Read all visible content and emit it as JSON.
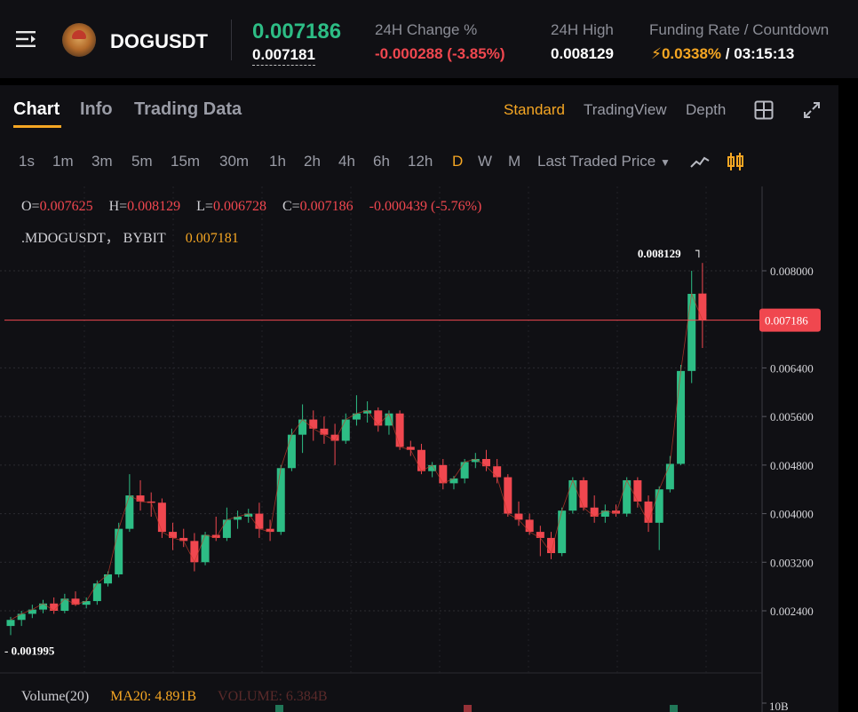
{
  "header": {
    "symbol": "DOGUSDT",
    "last_price": "0.007186",
    "mark_price": "0.007181",
    "change_label": "24H Change %",
    "change_value": "-0.000288 (-3.85%)",
    "high_label": "24H High",
    "high_value": "0.008129",
    "funding_label": "Funding Rate / Countdown",
    "funding_rate": "0.0338%",
    "countdown": "03:15:13"
  },
  "tabs": [
    "Chart",
    "Info",
    "Trading Data"
  ],
  "view_options": [
    "Standard",
    "TradingView",
    "Depth"
  ],
  "timeframes": [
    "1s",
    "1m",
    "3m",
    "5m",
    "15m",
    "30m",
    "1h",
    "2h",
    "4h",
    "6h",
    "12h",
    "D",
    "W",
    "M"
  ],
  "active_timeframe": "D",
  "price_type": "Last Traded Price",
  "legend": {
    "o_label": "O=",
    "o": "0.007625",
    "h_label": "H=",
    "h": "0.008129",
    "l_label": "L=",
    "l": "0.006728",
    "c_label": "C=",
    "c": "0.007186",
    "change": "-0.000439 (-5.76%)",
    "mark_symbol": ".MDOGUSDT， BYBIT",
    "mark_value": "0.007181"
  },
  "volume": {
    "label": "Volume(20)",
    "ma20": "MA20: 4.891B",
    "volume": "VOLUME: 6.384B",
    "axis_label": "10B"
  },
  "colors": {
    "up": "#2dbd85",
    "down": "#f0474f",
    "accent": "#f5a623",
    "panel_bg": "#101014"
  },
  "chart_data": {
    "type": "candlestick",
    "y_ticks": [
      "0.008000",
      "0.006400",
      "0.005600",
      "0.004800",
      "0.004000",
      "0.003200",
      "0.002400"
    ],
    "current_price_tag": "0.007186",
    "high_annotation": "0.008129",
    "low_annotation": "0.001995",
    "ylim": [
      0.0018,
      0.009
    ],
    "candles": [
      {
        "o": 0.00215,
        "h": 0.0023,
        "l": 0.002,
        "c": 0.00225
      },
      {
        "o": 0.00225,
        "h": 0.0024,
        "l": 0.00215,
        "c": 0.00235
      },
      {
        "o": 0.00235,
        "h": 0.0025,
        "l": 0.00228,
        "c": 0.00242
      },
      {
        "o": 0.00242,
        "h": 0.00258,
        "l": 0.00236,
        "c": 0.00252
      },
      {
        "o": 0.00252,
        "h": 0.00262,
        "l": 0.00235,
        "c": 0.0024
      },
      {
        "o": 0.0024,
        "h": 0.00268,
        "l": 0.00236,
        "c": 0.0026
      },
      {
        "o": 0.0026,
        "h": 0.00272,
        "l": 0.00248,
        "c": 0.0025
      },
      {
        "o": 0.0025,
        "h": 0.00262,
        "l": 0.00244,
        "c": 0.00256
      },
      {
        "o": 0.00256,
        "h": 0.0029,
        "l": 0.0025,
        "c": 0.00285
      },
      {
        "o": 0.00285,
        "h": 0.00305,
        "l": 0.0028,
        "c": 0.003
      },
      {
        "o": 0.003,
        "h": 0.00385,
        "l": 0.00295,
        "c": 0.00375
      },
      {
        "o": 0.00375,
        "h": 0.00465,
        "l": 0.0037,
        "c": 0.0043
      },
      {
        "o": 0.0043,
        "h": 0.00455,
        "l": 0.00405,
        "c": 0.0042
      },
      {
        "o": 0.0042,
        "h": 0.00435,
        "l": 0.00395,
        "c": 0.00418
      },
      {
        "o": 0.00418,
        "h": 0.00425,
        "l": 0.0036,
        "c": 0.0037
      },
      {
        "o": 0.0037,
        "h": 0.00385,
        "l": 0.0034,
        "c": 0.0036
      },
      {
        "o": 0.0036,
        "h": 0.00375,
        "l": 0.00345,
        "c": 0.00355
      },
      {
        "o": 0.00355,
        "h": 0.00368,
        "l": 0.00305,
        "c": 0.0032
      },
      {
        "o": 0.0032,
        "h": 0.0037,
        "l": 0.00315,
        "c": 0.00365
      },
      {
        "o": 0.00365,
        "h": 0.00395,
        "l": 0.00355,
        "c": 0.0036
      },
      {
        "o": 0.0036,
        "h": 0.0041,
        "l": 0.00355,
        "c": 0.0039
      },
      {
        "o": 0.0039,
        "h": 0.00405,
        "l": 0.00375,
        "c": 0.00395
      },
      {
        "o": 0.00395,
        "h": 0.00408,
        "l": 0.00385,
        "c": 0.004
      },
      {
        "o": 0.004,
        "h": 0.00418,
        "l": 0.0036,
        "c": 0.00375
      },
      {
        "o": 0.00375,
        "h": 0.0039,
        "l": 0.00355,
        "c": 0.0037
      },
      {
        "o": 0.0037,
        "h": 0.0048,
        "l": 0.00365,
        "c": 0.00475
      },
      {
        "o": 0.00475,
        "h": 0.0054,
        "l": 0.0047,
        "c": 0.0053
      },
      {
        "o": 0.0053,
        "h": 0.0058,
        "l": 0.005,
        "c": 0.00555
      },
      {
        "o": 0.00555,
        "h": 0.0057,
        "l": 0.0052,
        "c": 0.0054
      },
      {
        "o": 0.0054,
        "h": 0.0056,
        "l": 0.00515,
        "c": 0.0053
      },
      {
        "o": 0.0053,
        "h": 0.00548,
        "l": 0.0048,
        "c": 0.0052
      },
      {
        "o": 0.0052,
        "h": 0.00565,
        "l": 0.00515,
        "c": 0.00555
      },
      {
        "o": 0.00555,
        "h": 0.00595,
        "l": 0.00545,
        "c": 0.00565
      },
      {
        "o": 0.00565,
        "h": 0.00585,
        "l": 0.0055,
        "c": 0.0057
      },
      {
        "o": 0.0057,
        "h": 0.00575,
        "l": 0.00535,
        "c": 0.00545
      },
      {
        "o": 0.00545,
        "h": 0.0057,
        "l": 0.0053,
        "c": 0.00565
      },
      {
        "o": 0.00565,
        "h": 0.0057,
        "l": 0.00505,
        "c": 0.0051
      },
      {
        "o": 0.0051,
        "h": 0.0052,
        "l": 0.00495,
        "c": 0.00505
      },
      {
        "o": 0.00505,
        "h": 0.00515,
        "l": 0.00465,
        "c": 0.0047
      },
      {
        "o": 0.0047,
        "h": 0.00485,
        "l": 0.0046,
        "c": 0.0048
      },
      {
        "o": 0.0048,
        "h": 0.0049,
        "l": 0.0044,
        "c": 0.0045
      },
      {
        "o": 0.0045,
        "h": 0.00462,
        "l": 0.0044,
        "c": 0.00458
      },
      {
        "o": 0.00458,
        "h": 0.0049,
        "l": 0.0045,
        "c": 0.00485
      },
      {
        "o": 0.00485,
        "h": 0.005,
        "l": 0.00475,
        "c": 0.0049
      },
      {
        "o": 0.0049,
        "h": 0.00505,
        "l": 0.0047,
        "c": 0.00478
      },
      {
        "o": 0.00478,
        "h": 0.0049,
        "l": 0.0045,
        "c": 0.0046
      },
      {
        "o": 0.0046,
        "h": 0.00465,
        "l": 0.00395,
        "c": 0.004
      },
      {
        "o": 0.004,
        "h": 0.0042,
        "l": 0.0038,
        "c": 0.0039
      },
      {
        "o": 0.0039,
        "h": 0.004,
        "l": 0.00365,
        "c": 0.0037
      },
      {
        "o": 0.0037,
        "h": 0.0038,
        "l": 0.0033,
        "c": 0.0036
      },
      {
        "o": 0.0036,
        "h": 0.0037,
        "l": 0.00325,
        "c": 0.00335
      },
      {
        "o": 0.00335,
        "h": 0.0041,
        "l": 0.0033,
        "c": 0.00405
      },
      {
        "o": 0.00405,
        "h": 0.0046,
        "l": 0.004,
        "c": 0.00455
      },
      {
        "o": 0.00455,
        "h": 0.0046,
        "l": 0.00405,
        "c": 0.0041
      },
      {
        "o": 0.0041,
        "h": 0.0043,
        "l": 0.00385,
        "c": 0.00395
      },
      {
        "o": 0.00395,
        "h": 0.00415,
        "l": 0.00385,
        "c": 0.00405
      },
      {
        "o": 0.00405,
        "h": 0.00415,
        "l": 0.00395,
        "c": 0.004
      },
      {
        "o": 0.004,
        "h": 0.0046,
        "l": 0.00395,
        "c": 0.00455
      },
      {
        "o": 0.00455,
        "h": 0.0046,
        "l": 0.0041,
        "c": 0.0042
      },
      {
        "o": 0.0042,
        "h": 0.0043,
        "l": 0.0037,
        "c": 0.00385
      },
      {
        "o": 0.00385,
        "h": 0.00445,
        "l": 0.0034,
        "c": 0.0044
      },
      {
        "o": 0.0044,
        "h": 0.00495,
        "l": 0.00435,
        "c": 0.00482
      },
      {
        "o": 0.00482,
        "h": 0.00645,
        "l": 0.0048,
        "c": 0.00635
      },
      {
        "o": 0.00635,
        "h": 0.008,
        "l": 0.00615,
        "c": 0.00762
      },
      {
        "o": 0.007625,
        "h": 0.008129,
        "l": 0.006728,
        "c": 0.007186
      }
    ]
  }
}
